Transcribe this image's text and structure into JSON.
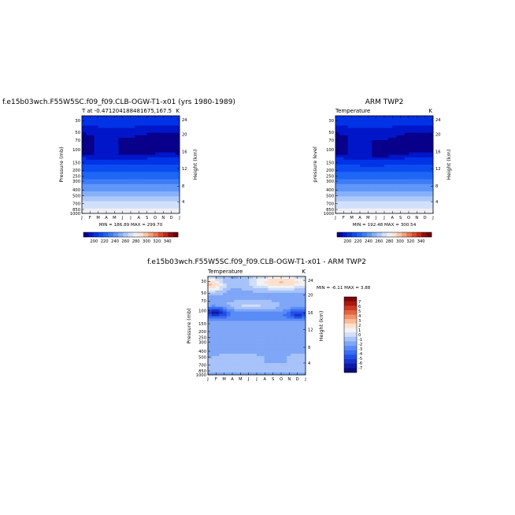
{
  "chart_data": [
    {
      "type": "heatmap",
      "title": "f.e15b03wch.F55W5SC.f09_f09.CLB-OGW-T1-x01 (yrs 1980-1989)",
      "subtitle_left": "T at -0.471204188481675,167.5",
      "subtitle_right": "K",
      "ylabel": "Pressure (mb)",
      "ylabel_right": "Height (km)",
      "x_ticks": [
        "J",
        "F",
        "M",
        "A",
        "M",
        "J",
        "J",
        "A",
        "S",
        "O",
        "N",
        "D",
        "J"
      ],
      "y_ticks": [
        "30",
        "50",
        "70",
        "100",
        "150",
        "200",
        "250",
        "300",
        "400",
        "500",
        "700",
        "850",
        "1000"
      ],
      "y_ticks_right": [
        "24",
        "20",
        "16",
        "12",
        "8",
        "4"
      ],
      "stats": "MIN = 186.89  MAX = 299.70",
      "min": 186.89,
      "max": 299.7,
      "colorbar": {
        "orientation": "horizontal",
        "labels": [
          "200",
          "220",
          "240",
          "260",
          "280",
          "300",
          "320",
          "340"
        ]
      }
    },
    {
      "type": "heatmap",
      "title": "ARM TWP2",
      "subtitle_left": "Temperature",
      "subtitle_right": "K",
      "ylabel": "pressure level",
      "ylabel_right": "Height (km)",
      "x_ticks": [
        "J",
        "F",
        "M",
        "A",
        "M",
        "J",
        "J",
        "A",
        "S",
        "O",
        "N",
        "D",
        "J"
      ],
      "y_ticks": [
        "30",
        "50",
        "70",
        "100",
        "150",
        "200",
        "250",
        "300",
        "400",
        "500",
        "700",
        "850",
        "1000"
      ],
      "y_ticks_right": [
        "24",
        "20",
        "16",
        "12",
        "8",
        "4"
      ],
      "stats": "MIN = 192.48  MAX = 300.54",
      "min": 192.48,
      "max": 300.54,
      "colorbar": {
        "orientation": "horizontal",
        "labels": [
          "200",
          "220",
          "240",
          "260",
          "280",
          "300",
          "320",
          "340"
        ]
      }
    },
    {
      "type": "heatmap",
      "title": "f.e15b03wch.F55W5SC.f09_f09.CLB-OGW-T1-x01 - ARM TWP2",
      "subtitle_left": "Temperature",
      "subtitle_right": "K",
      "ylabel": "Pressure (mb)",
      "ylabel_right": "Height (km)",
      "x_ticks": [
        "J",
        "F",
        "M",
        "A",
        "M",
        "J",
        "J",
        "A",
        "S",
        "O",
        "N",
        "D",
        "J"
      ],
      "y_ticks": [
        "30",
        "50",
        "70",
        "100",
        "150",
        "200",
        "250",
        "300",
        "400",
        "500",
        "700",
        "850",
        "1000"
      ],
      "y_ticks_right": [
        "24",
        "20",
        "16",
        "12",
        "8",
        "4"
      ],
      "stats": "MIN = -6.11  MAX =  3.88",
      "min": -6.11,
      "max": 3.88,
      "colorbar": {
        "orientation": "vertical",
        "labels": [
          "7",
          "6",
          "5",
          "4",
          "3",
          "2",
          "1",
          "0",
          "-1",
          "-2",
          "-3",
          "-4",
          "-5",
          "-6",
          "-7"
        ]
      }
    }
  ],
  "colors": {
    "abs_scale": [
      "#08008a",
      "#0016c8",
      "#0033e6",
      "#0a4df0",
      "#1f66f5",
      "#3c7df7",
      "#5f96f8",
      "#86b0f9",
      "#acc8fa",
      "#d2e0fb",
      "#eef0f4",
      "#fbe3d4",
      "#f9c5a6",
      "#f4a079",
      "#ec7550",
      "#dc4a2e",
      "#c22818",
      "#9a0a08",
      "#6d0000"
    ],
    "diff_scale": [
      "#0a0a80",
      "#0f1aa8",
      "#1633cc",
      "#2250e6",
      "#3a6ef2",
      "#5a8cf5",
      "#7fa6f7",
      "#a7c3f9",
      "#d0dff9",
      "#f2f2f2",
      "#fde0cf",
      "#f9bc9a",
      "#f19168",
      "#e36340",
      "#cc3a24",
      "#a81812",
      "#7a0606"
    ]
  }
}
